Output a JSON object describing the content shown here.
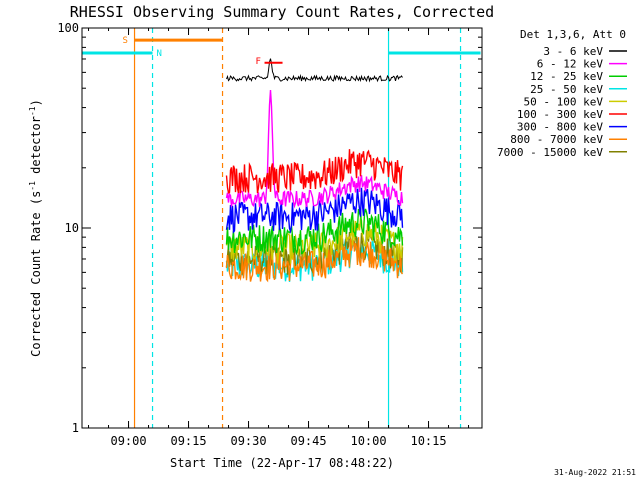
{
  "chart_data": {
    "type": "line",
    "title": "RHESSI Observing Summary Count Rates, Corrected",
    "xlabel": "Start Time (22-Apr-17 08:48:22)",
    "ylabel_main": "Corrected Count Rate (s",
    "ylabel_sup1": "-1",
    "ylabel_mid": " detector",
    "ylabel_sup2": "-1",
    "ylabel_end": ")",
    "yscale": "log",
    "xlim": [
      "08:48:22",
      "10:28:22"
    ],
    "ylim": [
      1,
      100
    ],
    "x_ticks": [
      "09:00",
      "09:15",
      "09:30",
      "09:45",
      "10:00",
      "10:15"
    ],
    "y_ticks": [
      "1",
      "10",
      "100"
    ],
    "legend_header": "Det 1,3,6, Att 0",
    "series": [
      {
        "name": "3 - 6 keV",
        "color": "#000000",
        "level": 56
      },
      {
        "name": "6 - 12 keV",
        "color": "#ff00ff",
        "level": 14
      },
      {
        "name": "12 - 25 keV",
        "color": "#00cc00",
        "level": 9
      },
      {
        "name": "25 - 50 keV",
        "color": "#00e5e5",
        "level": 6.5
      },
      {
        "name": "50 - 100 keV",
        "color": "#cccc00",
        "level": 8
      },
      {
        "name": "100 - 300 keV",
        "color": "#ff0000",
        "level": 18
      },
      {
        "name": "300 - 800 keV",
        "color": "#0000ff",
        "level": 11.5
      },
      {
        "name": "800 - 7000 keV",
        "color": "#ff8000",
        "level": 6.5
      },
      {
        "name": "7000 - 15000 keV",
        "color": "#808000",
        "level": 7
      }
    ],
    "data_window": [
      "09:24:30",
      "10:08:30"
    ],
    "peak_6_12": {
      "time": "09:35:30",
      "value": 45
    },
    "night_intervals": [
      {
        "label": "N",
        "start": "08:48:22",
        "end": "09:06:00",
        "color": "#00e5e5",
        "level": 75
      },
      {
        "label": "",
        "start": "10:05:00",
        "end": "10:28:00",
        "color": "#00e5e5",
        "level": 75
      }
    ],
    "saa_interval": {
      "label": "S",
      "start": "09:01:30",
      "end": "09:23:30",
      "color": "#ff8000",
      "level": 87
    },
    "flare_marker": {
      "label": "F",
      "start": "09:34:00",
      "end": "09:38:30",
      "color": "#ff0000",
      "level": 67
    },
    "vertical_lines": [
      {
        "time": "09:01:30",
        "style": "solid",
        "color": "#ff8000"
      },
      {
        "time": "09:06:00",
        "style": "dashed",
        "color": "#00e5e5"
      },
      {
        "time": "09:23:30",
        "style": "dashed",
        "color": "#ff8000"
      },
      {
        "time": "10:05:00",
        "style": "solid",
        "color": "#00e5e5"
      },
      {
        "time": "10:23:00",
        "style": "dashed",
        "color": "#00e5e5"
      }
    ]
  },
  "timestamp": "31-Aug-2022 21:51"
}
